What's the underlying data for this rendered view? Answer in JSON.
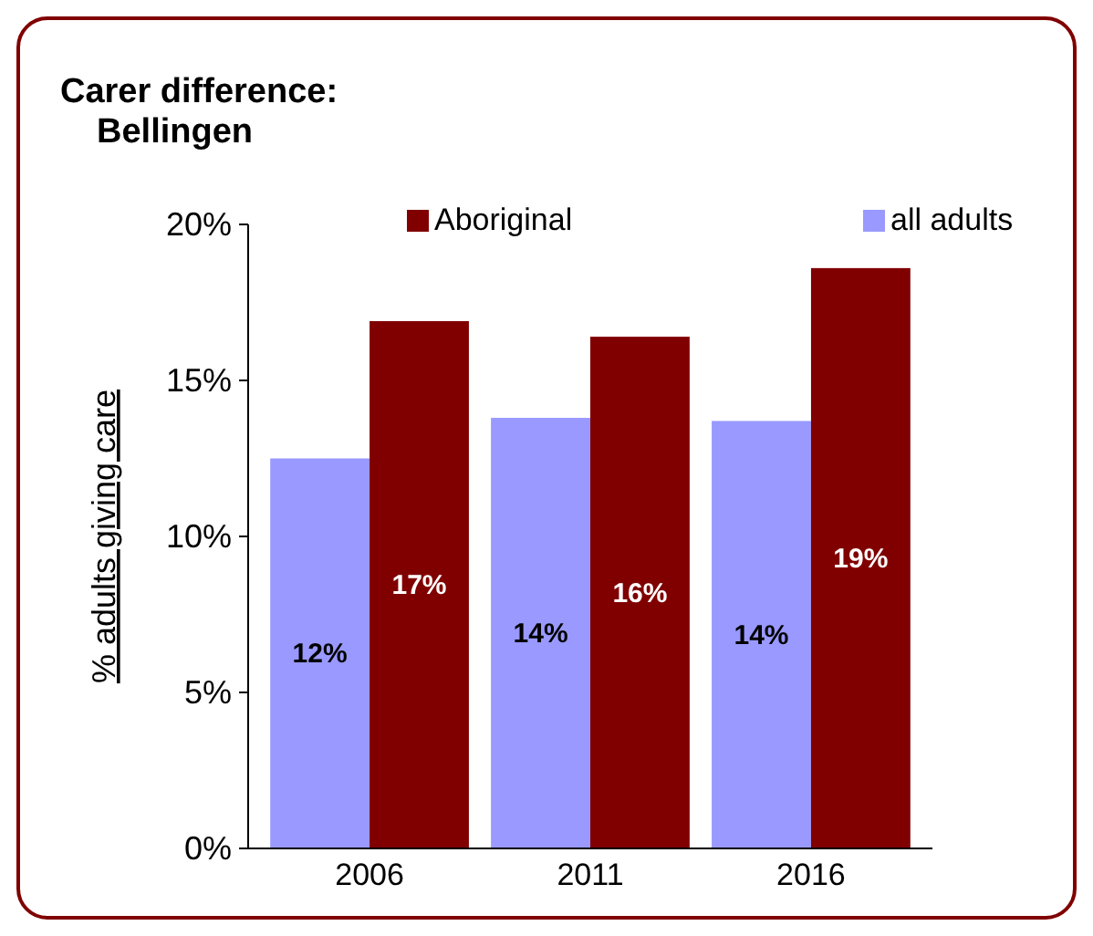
{
  "chart_data": {
    "type": "bar",
    "title": "Carer difference:\nBellingen",
    "ylabel": "% adults giving care",
    "categories": [
      "2006",
      "2011",
      "2016"
    ],
    "series": [
      {
        "name": "all adults",
        "color": "#9999ff",
        "values": [
          12.5,
          13.8,
          13.7
        ],
        "value_labels": [
          "12%",
          "14%",
          "14%"
        ]
      },
      {
        "name": "Aboriginal",
        "color": "#800000",
        "values": [
          16.9,
          16.4,
          18.6
        ],
        "value_labels": [
          "17%",
          "16%",
          "19%"
        ]
      }
    ],
    "ylim": [
      0,
      20
    ],
    "yticks": [
      {
        "value": 0,
        "label": "0%"
      },
      {
        "value": 5,
        "label": "5%"
      },
      {
        "value": 10,
        "label": "10%"
      },
      {
        "value": 15,
        "label": "15%"
      },
      {
        "value": 20,
        "label": "20%"
      }
    ],
    "grid": false,
    "legend": "top"
  }
}
